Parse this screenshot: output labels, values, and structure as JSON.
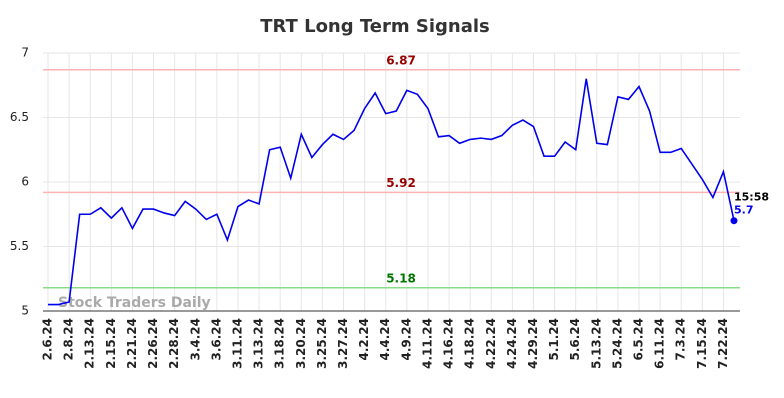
{
  "chart_data": {
    "type": "line",
    "title": "TRT Long Term Signals",
    "watermark": "Stock Traders Daily",
    "categories": [
      "2.6.24",
      null,
      "2.8.24",
      null,
      "2.13.24",
      null,
      "2.15.24",
      null,
      "2.21.24",
      null,
      "2.26.24",
      null,
      "2.28.24",
      null,
      "3.4.24",
      null,
      "3.6.24",
      null,
      "3.11.24",
      null,
      "3.13.24",
      null,
      "3.18.24",
      null,
      "3.20.24",
      null,
      "3.25.24",
      null,
      "3.27.24",
      null,
      "4.2.24",
      null,
      "4.4.24",
      null,
      "4.9.24",
      null,
      "4.11.24",
      null,
      "4.16.24",
      null,
      "4.18.24",
      null,
      "4.22.24",
      null,
      "4.24.24",
      null,
      "4.29.24",
      null,
      "5.1.24",
      null,
      "5.6.24",
      null,
      "5.13.24",
      null,
      "5.24.24",
      null,
      "6.5.24",
      null,
      "6.11.24",
      null,
      "7.3.24",
      null,
      "7.15.24",
      null,
      "7.22.24",
      null
    ],
    "values": [
      5.05,
      5.05,
      5.07,
      5.75,
      5.75,
      5.8,
      5.72,
      5.8,
      5.64,
      5.79,
      5.79,
      5.76,
      5.74,
      5.85,
      5.79,
      5.71,
      5.75,
      5.55,
      5.81,
      5.86,
      5.83,
      6.25,
      6.27,
      6.03,
      6.37,
      6.19,
      6.29,
      6.37,
      6.33,
      6.4,
      6.57,
      6.69,
      6.53,
      6.55,
      6.71,
      6.68,
      6.57,
      6.35,
      6.36,
      6.3,
      6.33,
      6.34,
      6.33,
      6.36,
      6.44,
      6.48,
      6.43,
      6.2,
      6.2,
      6.31,
      6.25,
      6.8,
      6.3,
      6.29,
      6.66,
      6.64,
      6.74,
      6.55,
      6.23,
      6.23,
      6.26,
      6.14,
      6.02,
      5.88,
      6.08,
      5.7
    ],
    "color": "#0000ee",
    "last_time": "15:58",
    "hlines": [
      {
        "value": 6.87,
        "color": "#ffb3b3",
        "label_color": "#990000"
      },
      {
        "value": 5.92,
        "color": "#ffb3b3",
        "label_color": "#990000"
      },
      {
        "value": 5.18,
        "color": "#88dd88",
        "label_color": "#007700"
      }
    ],
    "ylim": [
      5,
      7
    ],
    "yticks": [
      5,
      5.5,
      6,
      6.5,
      7
    ],
    "grid": true
  }
}
